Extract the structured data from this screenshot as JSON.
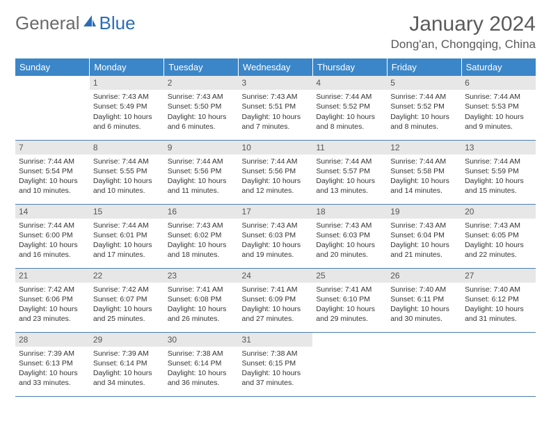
{
  "brand": {
    "part1": "General",
    "part2": "Blue",
    "icon_color": "#2a6db8"
  },
  "title": "January 2024",
  "location": "Dong'an, Chongqing, China",
  "colors": {
    "header_bg": "#3b86c8",
    "header_text": "#ffffff",
    "daynum_bg": "#e7e7e7",
    "row_border": "#4a7db5",
    "body_text": "#333333"
  },
  "weekdays": [
    "Sunday",
    "Monday",
    "Tuesday",
    "Wednesday",
    "Thursday",
    "Friday",
    "Saturday"
  ],
  "start_offset": 1,
  "days": [
    {
      "n": 1,
      "sunrise": "7:43 AM",
      "sunset": "5:49 PM",
      "daylight": "10 hours and 6 minutes."
    },
    {
      "n": 2,
      "sunrise": "7:43 AM",
      "sunset": "5:50 PM",
      "daylight": "10 hours and 6 minutes."
    },
    {
      "n": 3,
      "sunrise": "7:43 AM",
      "sunset": "5:51 PM",
      "daylight": "10 hours and 7 minutes."
    },
    {
      "n": 4,
      "sunrise": "7:44 AM",
      "sunset": "5:52 PM",
      "daylight": "10 hours and 8 minutes."
    },
    {
      "n": 5,
      "sunrise": "7:44 AM",
      "sunset": "5:52 PM",
      "daylight": "10 hours and 8 minutes."
    },
    {
      "n": 6,
      "sunrise": "7:44 AM",
      "sunset": "5:53 PM",
      "daylight": "10 hours and 9 minutes."
    },
    {
      "n": 7,
      "sunrise": "7:44 AM",
      "sunset": "5:54 PM",
      "daylight": "10 hours and 10 minutes."
    },
    {
      "n": 8,
      "sunrise": "7:44 AM",
      "sunset": "5:55 PM",
      "daylight": "10 hours and 10 minutes."
    },
    {
      "n": 9,
      "sunrise": "7:44 AM",
      "sunset": "5:56 PM",
      "daylight": "10 hours and 11 minutes."
    },
    {
      "n": 10,
      "sunrise": "7:44 AM",
      "sunset": "5:56 PM",
      "daylight": "10 hours and 12 minutes."
    },
    {
      "n": 11,
      "sunrise": "7:44 AM",
      "sunset": "5:57 PM",
      "daylight": "10 hours and 13 minutes."
    },
    {
      "n": 12,
      "sunrise": "7:44 AM",
      "sunset": "5:58 PM",
      "daylight": "10 hours and 14 minutes."
    },
    {
      "n": 13,
      "sunrise": "7:44 AM",
      "sunset": "5:59 PM",
      "daylight": "10 hours and 15 minutes."
    },
    {
      "n": 14,
      "sunrise": "7:44 AM",
      "sunset": "6:00 PM",
      "daylight": "10 hours and 16 minutes."
    },
    {
      "n": 15,
      "sunrise": "7:44 AM",
      "sunset": "6:01 PM",
      "daylight": "10 hours and 17 minutes."
    },
    {
      "n": 16,
      "sunrise": "7:43 AM",
      "sunset": "6:02 PM",
      "daylight": "10 hours and 18 minutes."
    },
    {
      "n": 17,
      "sunrise": "7:43 AM",
      "sunset": "6:03 PM",
      "daylight": "10 hours and 19 minutes."
    },
    {
      "n": 18,
      "sunrise": "7:43 AM",
      "sunset": "6:03 PM",
      "daylight": "10 hours and 20 minutes."
    },
    {
      "n": 19,
      "sunrise": "7:43 AM",
      "sunset": "6:04 PM",
      "daylight": "10 hours and 21 minutes."
    },
    {
      "n": 20,
      "sunrise": "7:43 AM",
      "sunset": "6:05 PM",
      "daylight": "10 hours and 22 minutes."
    },
    {
      "n": 21,
      "sunrise": "7:42 AM",
      "sunset": "6:06 PM",
      "daylight": "10 hours and 23 minutes."
    },
    {
      "n": 22,
      "sunrise": "7:42 AM",
      "sunset": "6:07 PM",
      "daylight": "10 hours and 25 minutes."
    },
    {
      "n": 23,
      "sunrise": "7:41 AM",
      "sunset": "6:08 PM",
      "daylight": "10 hours and 26 minutes."
    },
    {
      "n": 24,
      "sunrise": "7:41 AM",
      "sunset": "6:09 PM",
      "daylight": "10 hours and 27 minutes."
    },
    {
      "n": 25,
      "sunrise": "7:41 AM",
      "sunset": "6:10 PM",
      "daylight": "10 hours and 29 minutes."
    },
    {
      "n": 26,
      "sunrise": "7:40 AM",
      "sunset": "6:11 PM",
      "daylight": "10 hours and 30 minutes."
    },
    {
      "n": 27,
      "sunrise": "7:40 AM",
      "sunset": "6:12 PM",
      "daylight": "10 hours and 31 minutes."
    },
    {
      "n": 28,
      "sunrise": "7:39 AM",
      "sunset": "6:13 PM",
      "daylight": "10 hours and 33 minutes."
    },
    {
      "n": 29,
      "sunrise": "7:39 AM",
      "sunset": "6:14 PM",
      "daylight": "10 hours and 34 minutes."
    },
    {
      "n": 30,
      "sunrise": "7:38 AM",
      "sunset": "6:14 PM",
      "daylight": "10 hours and 36 minutes."
    },
    {
      "n": 31,
      "sunrise": "7:38 AM",
      "sunset": "6:15 PM",
      "daylight": "10 hours and 37 minutes."
    }
  ],
  "labels": {
    "sunrise": "Sunrise:",
    "sunset": "Sunset:",
    "daylight": "Daylight:"
  }
}
